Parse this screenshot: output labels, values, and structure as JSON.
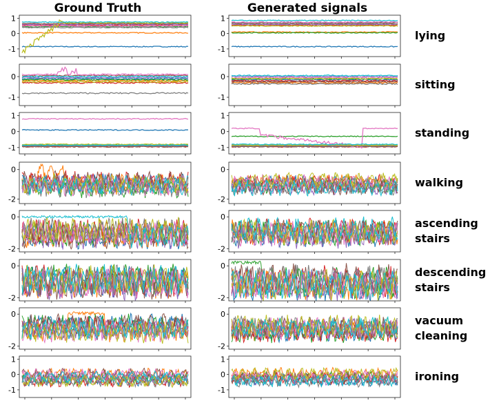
{
  "columns": {
    "left": "Ground Truth",
    "right": "Generated signals"
  },
  "chart_data": {
    "type": "line",
    "series_colors": [
      "#1f77b4",
      "#ff7f0e",
      "#2ca02c",
      "#d62728",
      "#9467bd",
      "#8c564b",
      "#e377c2",
      "#7f7f7f",
      "#bcbd22",
      "#17becf"
    ],
    "rows": [
      {
        "activity": [
          "lying"
        ],
        "yticks": [
          "1",
          "0",
          "-1"
        ],
        "ylim": [
          -1.5,
          1.2
        ],
        "regime": "flat",
        "left_levels": [
          -0.85,
          0.05,
          0.45,
          0.55,
          0.6,
          0.65,
          0.5,
          0.4,
          0.7,
          0.75
        ],
        "right_levels": [
          -0.85,
          0.1,
          0.05,
          0.55,
          0.6,
          0.7,
          0.75,
          0.65,
          0.5,
          0.85
        ]
      },
      {
        "activity": [
          "sitting"
        ],
        "yticks": [
          "0",
          "-1"
        ],
        "ylim": [
          -1.4,
          0.6
        ],
        "regime": "flat",
        "left_levels": [
          -0.1,
          -0.2,
          -0.15,
          -0.3,
          -0.05,
          0.05,
          0.1,
          -0.8,
          -0.25,
          0.0
        ],
        "right_levels": [
          -0.15,
          -0.3,
          -0.1,
          -0.2,
          0.0,
          -0.25,
          -0.05,
          -0.35,
          -0.1,
          0.05
        ]
      },
      {
        "activity": [
          "standing"
        ],
        "yticks": [
          "1",
          "0",
          "-1"
        ],
        "ylim": [
          -1.4,
          1.2
        ],
        "regime": "flat",
        "left_levels": [
          0.1,
          -0.9,
          -0.85,
          -0.95,
          -0.9,
          -0.95,
          0.8,
          -0.9,
          -0.8,
          -0.85
        ],
        "right_levels": [
          -0.9,
          -0.85,
          -0.3,
          -0.95,
          -0.9,
          -0.95,
          0.2,
          -0.9,
          -0.85,
          -0.8
        ]
      },
      {
        "activity": [
          "walking"
        ],
        "yticks": [
          "0",
          "-2"
        ],
        "ylim": [
          -2.3,
          0.5
        ],
        "regime": "busy",
        "center": -1.0,
        "amp": 0.6
      },
      {
        "activity": [
          "ascending",
          "stairs"
        ],
        "yticks": [
          "0",
          "-2"
        ],
        "ylim": [
          -2.2,
          0.4
        ],
        "regime": "busy",
        "center": -1.0,
        "amp": 0.7
      },
      {
        "activity": [
          "descending",
          "stairs"
        ],
        "yticks": [
          "0",
          "-2"
        ],
        "ylim": [
          -2.2,
          0.4
        ],
        "regime": "busy",
        "center": -1.0,
        "amp": 0.85
      },
      {
        "activity": [
          "vacuum",
          "cleaning"
        ],
        "yticks": [
          "0",
          "-2"
        ],
        "ylim": [
          -2.2,
          0.4
        ],
        "regime": "busy",
        "center": -0.9,
        "amp": 0.6
      },
      {
        "activity": [
          "ironing"
        ],
        "yticks": [
          "1",
          "0",
          "-1"
        ],
        "ylim": [
          -1.5,
          1.2
        ],
        "regime": "mild",
        "center": -0.2,
        "amp": 0.35
      }
    ]
  }
}
